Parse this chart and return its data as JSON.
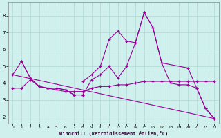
{
  "xlabel": "Windchill (Refroidissement éolien,°C)",
  "background_color": "#cff0ec",
  "grid_color": "#b0d8d4",
  "line_color": "#990099",
  "x_ticks": [
    0,
    1,
    2,
    3,
    4,
    5,
    6,
    7,
    8,
    9,
    10,
    11,
    12,
    13,
    14,
    15,
    16,
    17,
    18,
    19,
    20,
    21,
    22,
    23
  ],
  "y_ticks": [
    2,
    3,
    4,
    5,
    6,
    7,
    8
  ],
  "ylim": [
    1.6,
    8.8
  ],
  "xlim": [
    -0.5,
    23.5
  ],
  "series1_x": [
    0,
    1,
    2,
    3,
    4,
    5,
    6,
    7,
    8,
    9,
    10,
    11,
    12,
    13,
    14,
    15,
    16,
    17,
    18,
    19,
    20,
    21,
    22,
    23
  ],
  "series1_y": [
    4.5,
    5.3,
    4.3,
    3.8,
    3.7,
    3.7,
    3.6,
    3.3,
    3.3,
    4.2,
    4.5,
    5.0,
    4.3,
    5.0,
    6.4,
    8.2,
    7.3,
    5.2,
    4.0,
    3.9,
    3.9,
    3.7,
    2.5,
    1.9
  ],
  "series2_x": [
    0,
    1,
    2,
    3,
    4,
    5,
    6,
    7,
    8,
    9,
    10,
    11,
    12,
    13,
    14,
    15,
    16,
    17,
    18,
    19,
    20,
    21,
    22,
    23
  ],
  "series2_y": [
    3.7,
    3.7,
    4.2,
    3.8,
    3.7,
    3.6,
    3.5,
    3.5,
    3.5,
    3.7,
    3.8,
    3.8,
    3.9,
    3.9,
    4.0,
    4.1,
    4.1,
    4.1,
    4.1,
    4.1,
    4.1,
    4.1,
    4.1,
    4.1
  ],
  "series3_x": [
    8,
    9,
    10,
    11,
    12,
    13,
    14,
    15,
    16,
    17,
    20,
    21,
    22,
    23
  ],
  "series3_y": [
    4.1,
    4.5,
    5.0,
    6.6,
    7.1,
    6.5,
    6.4,
    8.2,
    7.3,
    5.2,
    4.9,
    3.7,
    2.5,
    1.9
  ],
  "series4_x": [
    0,
    23
  ],
  "series4_y": [
    4.5,
    1.9
  ],
  "series5_x": [
    1,
    2,
    3,
    4,
    5,
    6,
    7,
    8
  ],
  "series5_y": [
    5.3,
    4.3,
    3.8,
    3.7,
    3.7,
    3.6,
    3.3,
    3.3
  ]
}
